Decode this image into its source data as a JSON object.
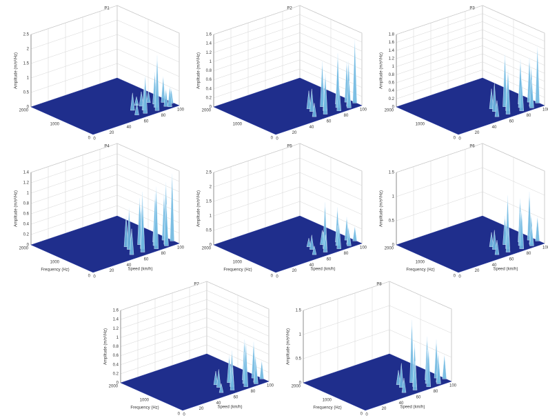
{
  "chart_data": [
    {
      "type": "waterfall",
      "title": "P1",
      "zlabel": "Amplitude (m/s²/Hz)",
      "surface_color": "#1f2e8c",
      "peak_color": "#6fb8e0",
      "x": [
        58,
        62,
        66,
        70,
        74,
        78,
        82,
        86,
        90,
        94,
        98,
        72,
        84,
        92
      ],
      "y": [
        200,
        450,
        150,
        300,
        500,
        100,
        250,
        400,
        150,
        350,
        200,
        600,
        550,
        80
      ],
      "values": [
        0.4,
        0.6,
        1.3,
        0.8,
        0.5,
        1.9,
        0.7,
        1.1,
        0.6,
        0.9,
        0.5,
        0.3,
        0.4,
        0.7
      ],
      "xlim": [
        0,
        100
      ],
      "xticks": [
        0,
        20,
        40,
        60,
        80,
        100
      ],
      "ylim": [
        0,
        2000
      ],
      "yticks": [
        0,
        1000,
        2000
      ],
      "zlim": [
        0,
        2.5
      ],
      "zticks": [
        0,
        0.5,
        1,
        1.5,
        2,
        2.5
      ],
      "grid": true
    },
    {
      "type": "waterfall",
      "title": "P2",
      "zlabel": "Amplitude (m/s²/Hz)",
      "surface_color": "#1f2e8c",
      "peak_color": "#6fb8e0",
      "x": [
        52,
        58,
        63,
        68,
        72,
        77,
        81,
        86,
        90,
        95,
        99,
        60,
        75,
        88
      ],
      "y": [
        200,
        450,
        150,
        300,
        500,
        100,
        250,
        400,
        150,
        350,
        200,
        600,
        550,
        80
      ],
      "values": [
        0.3,
        0.5,
        0.9,
        0.7,
        1.0,
        0.6,
        1.2,
        0.8,
        1.0,
        0.9,
        1.4,
        0.4,
        0.5,
        0.6
      ],
      "xlim": [
        0,
        100
      ],
      "xticks": [
        0,
        20,
        40,
        60,
        80,
        100
      ],
      "ylim": [
        0,
        2000
      ],
      "yticks": [
        0,
        1000,
        2000
      ],
      "zlim": [
        0,
        1.6
      ],
      "zticks": [
        0,
        0.2,
        0.4,
        0.6,
        0.8,
        1,
        1.2,
        1.4,
        1.6
      ],
      "grid": true
    },
    {
      "type": "waterfall",
      "title": "P3",
      "zlabel": "Amplitude (m/s²/Hz)",
      "surface_color": "#1f2e8c",
      "peak_color": "#6fb8e0",
      "x": [
        52,
        58,
        63,
        68,
        72,
        77,
        81,
        86,
        90,
        95,
        99,
        60,
        75,
        88
      ],
      "y": [
        200,
        450,
        150,
        300,
        500,
        100,
        250,
        400,
        150,
        350,
        200,
        600,
        550,
        80
      ],
      "values": [
        0.4,
        0.7,
        1.1,
        0.9,
        1.3,
        0.8,
        1.2,
        0.9,
        1.0,
        1.1,
        1.4,
        0.5,
        0.6,
        0.7
      ],
      "xlim": [
        0,
        100
      ],
      "xticks": [
        0,
        20,
        40,
        60,
        80,
        100
      ],
      "ylim": [
        0,
        2000
      ],
      "yticks": [
        0,
        1000,
        2000
      ],
      "zlim": [
        0,
        1.8
      ],
      "zticks": [
        0,
        0.2,
        0.4,
        0.6,
        0.8,
        1,
        1.2,
        1.4,
        1.6,
        1.8
      ],
      "grid": true
    },
    {
      "type": "waterfall",
      "title": "P4",
      "zlabel": "Amplitude (m/s²/Hz)",
      "xlabel": "Speed (km/h)",
      "ylabel": "Frequency (Hz)",
      "surface_color": "#1f2e8c",
      "peak_color": "#6fb8e0",
      "x": [
        52,
        58,
        63,
        68,
        72,
        77,
        81,
        86,
        90,
        95,
        99,
        60,
        75,
        88
      ],
      "y": [
        200,
        450,
        150,
        300,
        500,
        100,
        250,
        400,
        150,
        350,
        200,
        600,
        550,
        80
      ],
      "values": [
        0.5,
        0.8,
        1.0,
        1.1,
        0.9,
        1.2,
        1.0,
        0.8,
        1.2,
        0.9,
        1.3,
        0.6,
        0.7,
        0.8
      ],
      "xlim": [
        0,
        100
      ],
      "xticks": [
        0,
        20,
        40,
        60,
        80,
        100
      ],
      "ylim": [
        0,
        2000
      ],
      "yticks": [
        0,
        1000,
        2000
      ],
      "zlim": [
        0,
        1.4
      ],
      "zticks": [
        0,
        0.2,
        0.4,
        0.6,
        0.8,
        1,
        1.2,
        1.4
      ],
      "grid": true
    },
    {
      "type": "waterfall",
      "title": "P5",
      "zlabel": "Amplitude (m/s²/Hz)",
      "xlabel": "Speed (km/h)",
      "ylabel": "Frequency (Hz)",
      "surface_color": "#1f2e8c",
      "peak_color": "#6fb8e0",
      "x": [
        52,
        58,
        63,
        68,
        72,
        77,
        81,
        86,
        90,
        95,
        99,
        60,
        75,
        88
      ],
      "y": [
        200,
        450,
        150,
        300,
        500,
        100,
        250,
        400,
        150,
        350,
        200,
        600,
        550,
        80
      ],
      "values": [
        0.3,
        0.5,
        0.6,
        1.6,
        0.5,
        0.9,
        0.7,
        1.2,
        0.6,
        0.8,
        0.5,
        0.3,
        0.4,
        0.5
      ],
      "xlim": [
        0,
        100
      ],
      "xticks": [
        0,
        20,
        40,
        60,
        80,
        100
      ],
      "ylim": [
        0,
        2000
      ],
      "yticks": [
        0,
        1000,
        2000
      ],
      "zlim": [
        0,
        2.5
      ],
      "zticks": [
        0,
        0.5,
        1,
        1.5,
        2,
        2.5
      ],
      "grid": true
    },
    {
      "type": "waterfall",
      "title": "P6",
      "zlabel": "Amplitude (m/s²/Hz)",
      "xlabel": "Speed (km/h)",
      "ylabel": "Frequency (Hz)",
      "surface_color": "#1f2e8c",
      "peak_color": "#6fb8e0",
      "x": [
        52,
        58,
        63,
        68,
        72,
        77,
        81,
        86,
        90,
        95,
        99,
        60,
        75,
        88
      ],
      "y": [
        200,
        450,
        150,
        300,
        500,
        100,
        250,
        400,
        150,
        350,
        200,
        600,
        550,
        80
      ],
      "values": [
        0.3,
        0.4,
        0.5,
        1.1,
        0.6,
        0.8,
        0.7,
        0.9,
        0.6,
        1.0,
        0.5,
        0.3,
        0.4,
        0.4
      ],
      "xlim": [
        0,
        100
      ],
      "xticks": [
        0,
        20,
        40,
        60,
        80,
        100
      ],
      "ylim": [
        0,
        2000
      ],
      "yticks": [
        0,
        1000,
        2000
      ],
      "zlim": [
        0,
        1.5
      ],
      "zticks": [
        0,
        0.5,
        1,
        1.5
      ],
      "grid": true
    },
    {
      "type": "waterfall",
      "title": "P7",
      "zlabel": "Amplitude (m/s²/Hz)",
      "xlabel": "Speed (km/h)",
      "ylabel": "Frequency (Hz)",
      "surface_color": "#1f2e8c",
      "peak_color": "#6fb8e0",
      "x": [
        52,
        58,
        63,
        68,
        72,
        77,
        81,
        86,
        90,
        95,
        99,
        60,
        75,
        88
      ],
      "y": [
        200,
        450,
        150,
        300,
        500,
        100,
        250,
        400,
        150,
        350,
        200,
        600,
        550,
        80
      ],
      "values": [
        0.2,
        0.4,
        0.5,
        0.8,
        0.6,
        1.0,
        0.7,
        0.9,
        0.6,
        0.8,
        0.4,
        0.3,
        0.4,
        0.5
      ],
      "xlim": [
        0,
        100
      ],
      "xticks": [
        0,
        20,
        40,
        60,
        80,
        100
      ],
      "ylim": [
        0,
        2000
      ],
      "yticks": [
        0,
        1000,
        2000
      ],
      "zlim": [
        0,
        1.6
      ],
      "zticks": [
        0,
        0.2,
        0.4,
        0.6,
        0.8,
        1,
        1.2,
        1.4,
        1.6
      ],
      "grid": true
    },
    {
      "type": "waterfall",
      "title": "P8",
      "zlabel": "Amplitude (m/s²/Hz)",
      "xlabel": "Speed (km/h)",
      "ylabel": "Frequency (Hz)",
      "surface_color": "#1f2e8c",
      "peak_color": "#6fb8e0",
      "x": [
        52,
        58,
        63,
        68,
        72,
        77,
        81,
        86,
        90,
        95,
        99,
        60,
        75,
        88
      ],
      "y": [
        200,
        450,
        150,
        300,
        500,
        100,
        250,
        400,
        150,
        350,
        200,
        600,
        550,
        80
      ],
      "values": [
        0.3,
        0.5,
        0.6,
        0.9,
        1.3,
        0.8,
        0.7,
        0.9,
        0.6,
        0.8,
        0.5,
        0.3,
        0.4,
        0.5
      ],
      "xlim": [
        0,
        100
      ],
      "xticks": [
        0,
        20,
        40,
        60,
        80,
        100
      ],
      "ylim": [
        0,
        2000
      ],
      "yticks": [
        0,
        1000,
        2000
      ],
      "zlim": [
        0,
        1.5
      ],
      "zticks": [
        0,
        0.5,
        1,
        1.5
      ],
      "grid": true
    }
  ]
}
